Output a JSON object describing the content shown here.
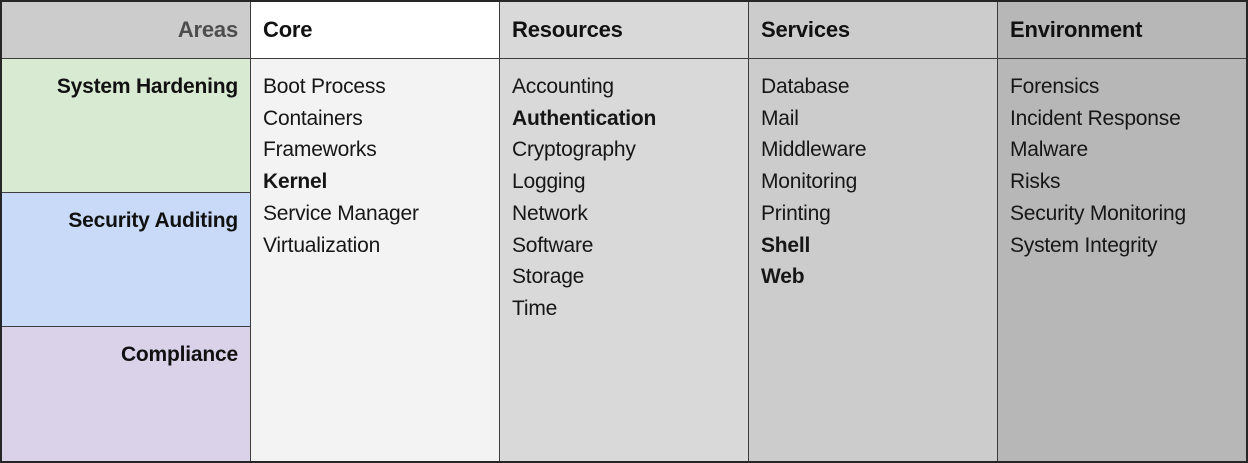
{
  "table": {
    "areas_header": {
      "label": "Areas",
      "bg": "#cccccc",
      "text_color": "#4d4d4d"
    },
    "areas": [
      {
        "label": "System Hardening",
        "color": "#d9ead3"
      },
      {
        "label": "Security Auditing",
        "color": "#c9daf8"
      },
      {
        "label": "Compliance",
        "color": "#d9d2e9"
      }
    ],
    "columns": [
      {
        "label": "Core",
        "header_bg": "#ffffff",
        "body_bg": "#f3f3f3",
        "items": [
          {
            "text": "Boot Process",
            "bold": false
          },
          {
            "text": "Containers",
            "bold": false
          },
          {
            "text": "Frameworks",
            "bold": false
          },
          {
            "text": "Kernel",
            "bold": true
          },
          {
            "text": "Service Manager",
            "bold": false
          },
          {
            "text": "Virtualization",
            "bold": false
          }
        ]
      },
      {
        "label": "Resources",
        "header_bg": "#d9d9d9",
        "body_bg": "#d9d9d9",
        "items": [
          {
            "text": "Accounting",
            "bold": false
          },
          {
            "text": "Authentication",
            "bold": true
          },
          {
            "text": "Cryptography",
            "bold": false
          },
          {
            "text": "Logging",
            "bold": false
          },
          {
            "text": "Network",
            "bold": false
          },
          {
            "text": "Software",
            "bold": false
          },
          {
            "text": "Storage",
            "bold": false
          },
          {
            "text": "Time",
            "bold": false
          }
        ]
      },
      {
        "label": "Services",
        "header_bg": "#cccccc",
        "body_bg": "#cccccc",
        "items": [
          {
            "text": "Database",
            "bold": false
          },
          {
            "text": "Mail",
            "bold": false
          },
          {
            "text": "Middleware",
            "bold": false
          },
          {
            "text": "Monitoring",
            "bold": false
          },
          {
            "text": "Printing",
            "bold": false
          },
          {
            "text": "Shell",
            "bold": true
          },
          {
            "text": "Web",
            "bold": true
          }
        ]
      },
      {
        "label": "Environment",
        "header_bg": "#b7b7b7",
        "body_bg": "#b7b7b7",
        "items": [
          {
            "text": "Forensics",
            "bold": false
          },
          {
            "text": "Incident Response",
            "bold": false
          },
          {
            "text": "Malware",
            "bold": false
          },
          {
            "text": "Risks",
            "bold": false
          },
          {
            "text": "Security Monitoring",
            "bold": false
          },
          {
            "text": "System Integrity",
            "bold": false
          }
        ]
      }
    ]
  }
}
